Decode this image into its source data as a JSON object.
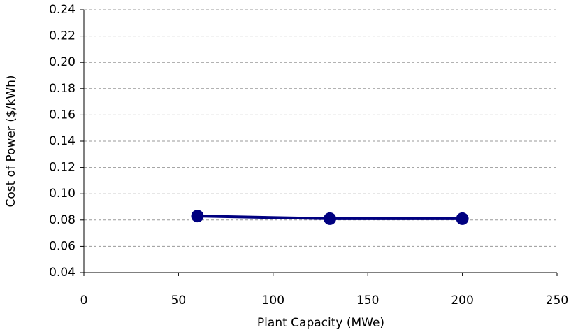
{
  "chart_data": {
    "type": "line",
    "x_label": "Plant Capacity (MWe)",
    "y_label": "Cost of Power ($/kWh)",
    "x": [
      60,
      130,
      200
    ],
    "series": [
      {
        "name": "Cost of Power",
        "color": "#000080",
        "values": [
          0.083,
          0.081,
          0.081
        ]
      }
    ],
    "xlim": [
      0,
      250
    ],
    "xticks": [
      0,
      50,
      100,
      150,
      200,
      250
    ],
    "ylim": [
      0.04,
      0.24
    ],
    "yticks": [
      "0.04",
      "0.06",
      "0.08",
      {
        "value": 0.1,
        "label": "0.10"
      },
      "0.12",
      "0.14",
      "0.16",
      "0.18",
      {
        "value": 0.2,
        "label": "0.20"
      },
      "0.22",
      "0.24"
    ],
    "grid": true
  }
}
